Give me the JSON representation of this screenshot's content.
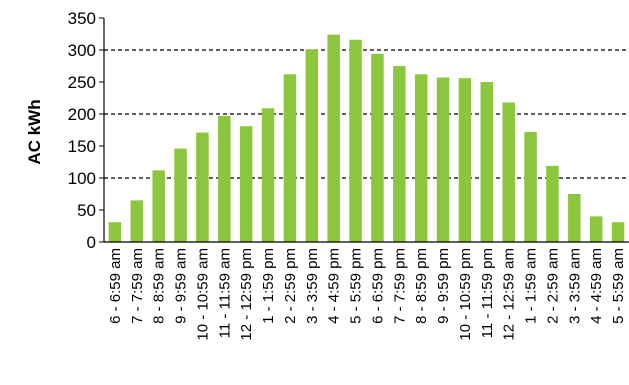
{
  "chart_data": {
    "type": "bar",
    "title": "",
    "xlabel": "",
    "ylabel": "AC kWh",
    "ylim": [
      0,
      350
    ],
    "yticks": [
      0,
      50,
      100,
      150,
      200,
      250,
      300,
      350
    ],
    "grid": "dashed horizontal at 100, 200, 300",
    "bar_color": "#8cc63f",
    "categories": [
      "6 - 6:59 am",
      "7 - 7:59 am",
      "8 - 8:59 am",
      "9 - 9:59 am",
      "10 - 10:59 am",
      "11 - 11:59 am",
      "12 - 12:59 pm",
      "1 - 1:59 pm",
      "2 - 2:59 pm",
      "3 - 3:59 pm",
      "4 - 4:59 pm",
      "5 - 5:59 pm",
      "6 - 6:59 pm",
      "7 - 7:59 pm",
      "8 - 8:59 pm",
      "9 - 9:59 pm",
      "10 - 10:59 pm",
      "11 - 11:59 pm",
      "12 - 12:59 am",
      "1 - 1:59 am",
      "2 - 2:59 am",
      "3 - 3:59 am",
      "4 - 4:59 am",
      "5 - 5:59 am"
    ],
    "values": [
      31,
      65,
      112,
      146,
      171,
      197,
      181,
      209,
      262,
      301,
      324,
      316,
      294,
      275,
      262,
      257,
      256,
      250,
      218,
      172,
      119,
      75,
      40,
      31
    ]
  }
}
